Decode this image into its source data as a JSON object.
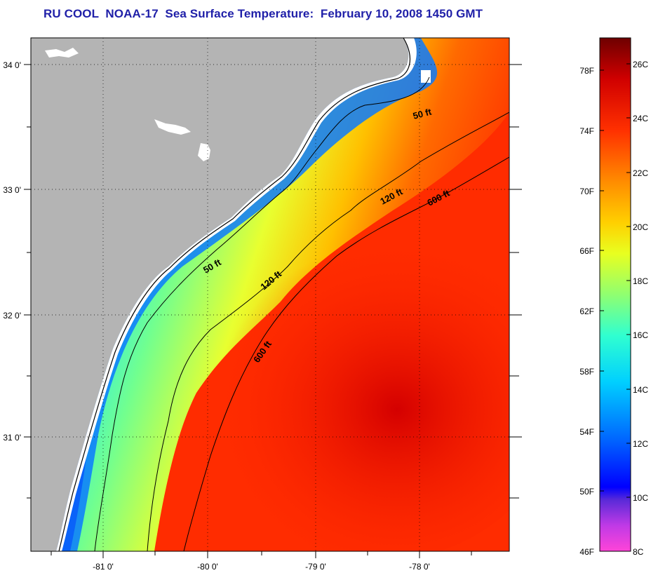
{
  "title": "RU COOL  NOAA-17  Sea Surface Temperature:  February 10, 2008 1450 GMT",
  "map": {
    "lat_ticks": [
      {
        "lat": 34.0,
        "label": "34 0'"
      },
      {
        "lat": 33.0,
        "label": "33 0'"
      },
      {
        "lat": 32.0,
        "label": "32 0'"
      },
      {
        "lat": 31.0,
        "label": "31 0'"
      }
    ],
    "lon_ticks": [
      {
        "lon": -81.0,
        "label": "-81 0'"
      },
      {
        "lon": -80.0,
        "label": "-80 0'"
      },
      {
        "lon": -79.0,
        "label": "-79 0'"
      },
      {
        "lon": -78.0,
        "label": "-78 0'"
      }
    ],
    "contour_labels": [
      {
        "id": "label-50ft-north",
        "text": "50 ft"
      },
      {
        "id": "label-50ft-south",
        "text": "50 ft"
      },
      {
        "id": "label-120ft-north",
        "text": "120 ft"
      },
      {
        "id": "label-120ft-south",
        "text": "120 ft"
      },
      {
        "id": "label-600ft-north",
        "text": "600 ft"
      },
      {
        "id": "label-600ft-south",
        "text": "600 ft"
      }
    ],
    "colors": {
      "land": "#b4b4b4",
      "cloud": "#ffffff",
      "grid": "#000000"
    }
  },
  "colorbar": {
    "fahrenheit_labels": [
      "78F",
      "74F",
      "70F",
      "66F",
      "62F",
      "58F",
      "54F",
      "50F",
      "46F"
    ],
    "celsius_labels": [
      "26C",
      "24C",
      "22C",
      "20C",
      "18C",
      "16C",
      "14C",
      "12C",
      "10C",
      "8C"
    ],
    "gradient": [
      "#ff44d8",
      "#b032e6",
      "#4a2ad8",
      "#0000ff",
      "#0060ff",
      "#00c8ff",
      "#20ffe0",
      "#80ff80",
      "#e6ff20",
      "#ffd000",
      "#ff8c00",
      "#ff3000",
      "#d80000",
      "#780000"
    ]
  }
}
